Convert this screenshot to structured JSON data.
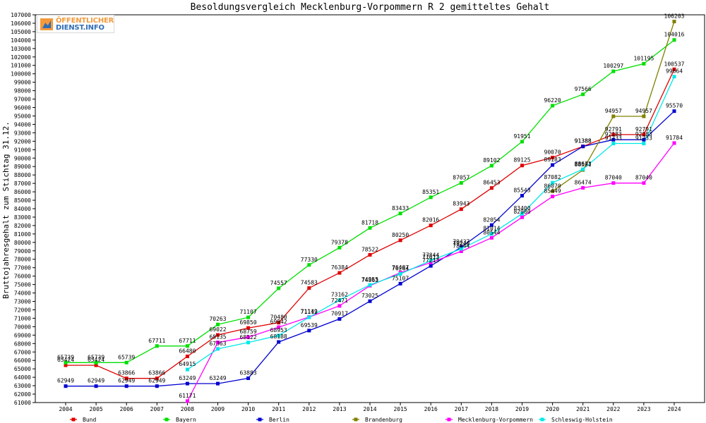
{
  "logo": {
    "line1": "ÖFFENTLICHER",
    "line2": "DIENST.INFO"
  },
  "chart_data": {
    "type": "line",
    "title": "Besoldungsvergleich Mecklenburg-Vorpommern R 2 gemitteltes Gehalt",
    "xlabel": "",
    "ylabel": "Bruttojahresgehalt zum Stichtag 31.12.",
    "ylim": [
      61000,
      107000
    ],
    "ytick_step": 1000,
    "grid": false,
    "legend_position": "bottom",
    "categories": [
      "2004",
      "2005",
      "2006",
      "2007",
      "2008",
      "2009",
      "2010",
      "2011",
      "2012",
      "2013",
      "2014",
      "2015",
      "2016",
      "2017",
      "2018",
      "2019",
      "2020",
      "2021",
      "2022",
      "2023",
      "2024"
    ],
    "series": [
      {
        "name": "Bund",
        "color": "#e00000",
        "values": [
          65424,
          65424,
          63866,
          63866,
          66480,
          69022,
          69850,
          70480,
          74583,
          76384,
          78522,
          80250,
          82016,
          83943,
          86453,
          89125,
          90070,
          91388,
          92791,
          92791,
          100537
        ]
      },
      {
        "name": "Bayern",
        "color": "#00e000",
        "values": [
          65739,
          65739,
          65739,
          67711,
          67711,
          70263,
          71107,
          74557,
          77330,
          79378,
          81718,
          83433,
          85351,
          87057,
          89102,
          91951,
          96220,
          97566,
          100297,
          101195,
          104016
        ]
      },
      {
        "name": "Berlin",
        "color": "#0000d0",
        "values": [
          62949,
          62949,
          62949,
          62949,
          63249,
          63249,
          63883,
          68188,
          69539,
          70917,
          73025,
          75107,
          77213,
          79437,
          82054,
          85543,
          89183,
          91388,
          92183,
          92183,
          95570
        ]
      },
      {
        "name": "Brandenburg",
        "color": "#808000",
        "values": [
          null,
          null,
          null,
          null,
          null,
          null,
          null,
          null,
          null,
          null,
          null,
          null,
          null,
          null,
          null,
          null,
          86070,
          88591,
          94957,
          94957,
          106203
        ]
      },
      {
        "name": "Mecklenburg-Vorpommern",
        "color": "#ff00ff",
        "values": [
          null,
          null,
          null,
          null,
          61171,
          68135,
          68759,
          69942,
          71149,
          72471,
          74863,
          76407,
          77613,
          78944,
          80544,
          82980,
          85449,
          86474,
          87040,
          87040,
          91784
        ]
      },
      {
        "name": "Schleswig-Holstein",
        "color": "#00e8e8",
        "values": [
          null,
          null,
          null,
          null,
          64915,
          67363,
          68122,
          68953,
          71112,
          73162,
          74955,
          76264,
          77844,
          79240,
          81014,
          83400,
          87082,
          88673,
          91733,
          91733,
          99664
        ]
      }
    ]
  }
}
